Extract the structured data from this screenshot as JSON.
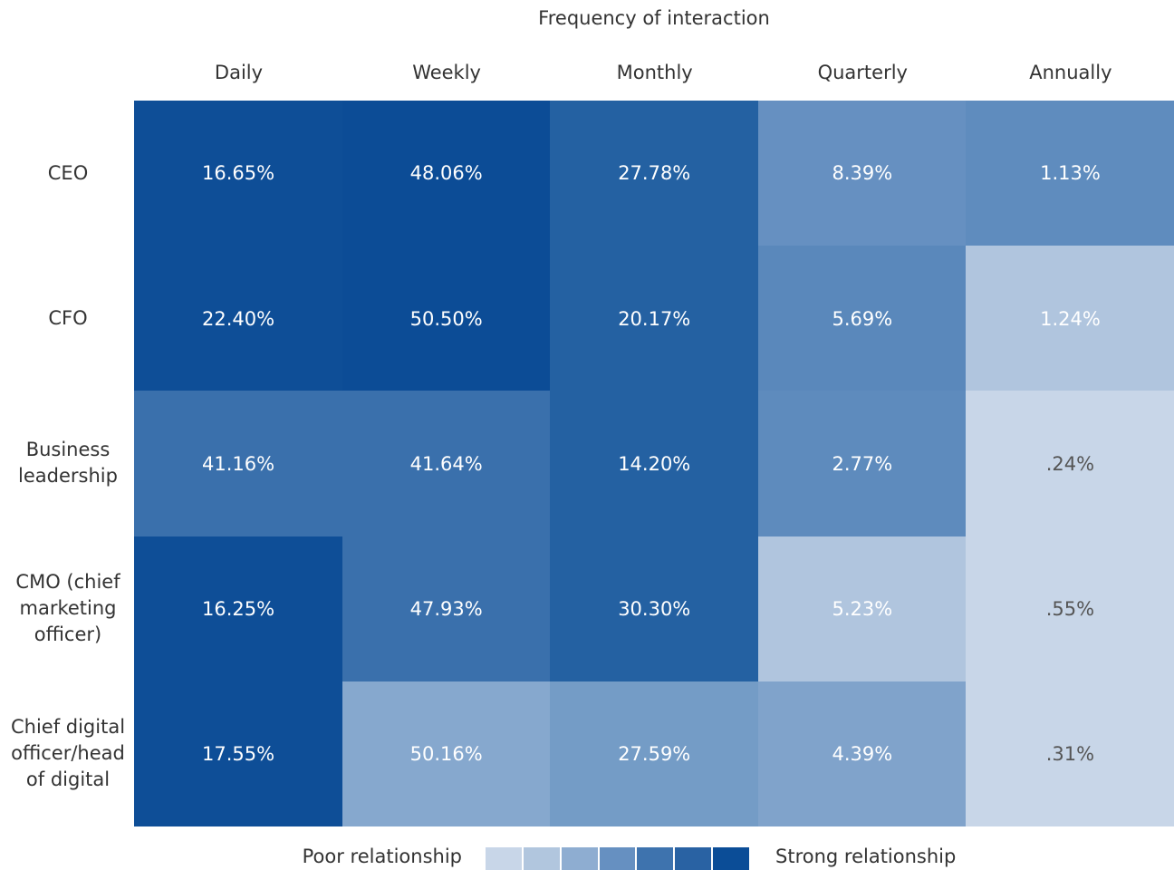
{
  "chart_data": {
    "type": "heatmap",
    "title": "Frequency of interaction",
    "columns": [
      "Daily",
      "Weekly",
      "Monthly",
      "Quarterly",
      "Annually"
    ],
    "rows": [
      "CEO",
      "CFO",
      "Business leadership",
      "CMO (chief marketing officer)",
      "Chief digital officer/head of digital"
    ],
    "values": [
      [
        16.65,
        48.06,
        27.78,
        8.39,
        1.13
      ],
      [
        22.4,
        50.5,
        20.17,
        5.69,
        1.24
      ],
      [
        41.16,
        41.64,
        14.2,
        2.77,
        0.24
      ],
      [
        16.25,
        47.93,
        30.3,
        5.23,
        0.55
      ],
      [
        17.55,
        50.16,
        27.59,
        4.39,
        0.31
      ]
    ],
    "value_labels": [
      [
        "16.65%",
        "48.06%",
        "27.78%",
        "8.39%",
        "1.13%"
      ],
      [
        "22.40%",
        "50.50%",
        "20.17%",
        "5.69%",
        "1.24%"
      ],
      [
        "41.16%",
        "41.64%",
        "14.20%",
        "2.77%",
        ".24%"
      ],
      [
        "16.25%",
        "47.93%",
        "30.30%",
        "5.23%",
        ".55%"
      ],
      [
        "17.55%",
        "50.16%",
        "27.59%",
        "4.39%",
        ".31%"
      ]
    ],
    "colors": [
      [
        "#0e4e97",
        "#0c4c96",
        "#2461a2",
        "#6690c1",
        "#5f8cbe"
      ],
      [
        "#0e4e97",
        "#0c4c96",
        "#2461a2",
        "#5a88bb",
        "#b0c5de"
      ],
      [
        "#3a70ac",
        "#3a70ac",
        "#2461a2",
        "#5e8bbd",
        "#c8d6e8"
      ],
      [
        "#0e4e97",
        "#3a70ac",
        "#2461a2",
        "#b0c5de",
        "#c8d6e8"
      ],
      [
        "#0e4e97",
        "#86a8ce",
        "#749cc6",
        "#80a3cb",
        "#c8d6e8"
      ]
    ],
    "legend": {
      "low_label": "Poor relationship",
      "high_label": "Strong relationship",
      "colors": [
        "#c8d6e8",
        "#b1c6de",
        "#8eadd1",
        "#6690c1",
        "#3e73ae",
        "#2962a3",
        "#0b4d97"
      ]
    }
  }
}
